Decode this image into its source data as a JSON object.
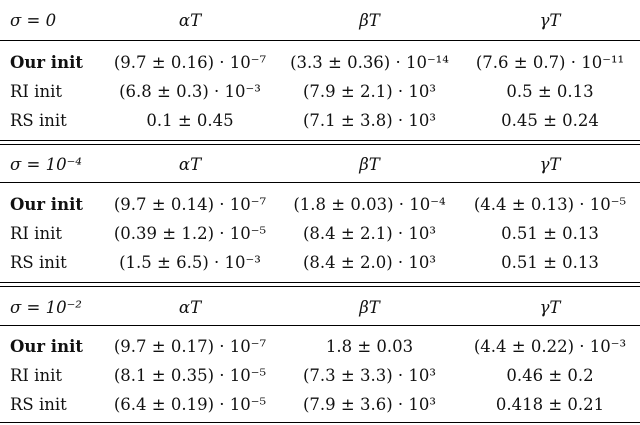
{
  "headers": [
    "α_T",
    "β_T",
    "γ_T"
  ],
  "headers_display": [
    "αT",
    "βT",
    "γT"
  ],
  "sections": [
    {
      "sigma_label": "σ = 0",
      "rows": [
        {
          "label": "Our init",
          "bold": true,
          "alpha": "(9.7 ± 0.16) · 10⁻⁷",
          "beta": "(3.3 ± 0.36) · 10⁻¹⁴",
          "gamma": "(7.6 ± 0.7) · 10⁻¹¹"
        },
        {
          "label": "RI init",
          "bold": false,
          "alpha": "(6.8 ± 0.3) · 10⁻³",
          "beta": "(7.9 ± 2.1) · 10³",
          "gamma": "0.5 ± 0.13"
        },
        {
          "label": "RS init",
          "bold": false,
          "alpha": "0.1 ± 0.45",
          "beta": "(7.1 ± 3.8) · 10³",
          "gamma": "0.45 ± 0.24"
        }
      ]
    },
    {
      "sigma_label": "σ = 10⁻⁴",
      "rows": [
        {
          "label": "Our init",
          "bold": true,
          "alpha": "(9.7 ± 0.14) · 10⁻⁷",
          "beta": "(1.8 ± 0.03) · 10⁻⁴",
          "gamma": "(4.4 ± 0.13) · 10⁻⁵"
        },
        {
          "label": "RI init",
          "bold": false,
          "alpha": "(0.39 ± 1.2) · 10⁻⁵",
          "beta": "(8.4 ± 2.1) · 10³",
          "gamma": "0.51 ± 0.13"
        },
        {
          "label": "RS init",
          "bold": false,
          "alpha": "(1.5 ± 6.5) · 10⁻³",
          "beta": "(8.4 ± 2.0) · 10³",
          "gamma": "0.51 ± 0.13"
        }
      ]
    },
    {
      "sigma_label": "σ = 10⁻²",
      "rows": [
        {
          "label": "Our init",
          "bold": true,
          "alpha": "(9.7 ± 0.17) · 10⁻⁷",
          "beta": "1.8 ± 0.03",
          "gamma": "(4.4 ± 0.22) · 10⁻³"
        },
        {
          "label": "RI init",
          "bold": false,
          "alpha": "(8.1 ± 0.35) · 10⁻⁵",
          "beta": "(7.3 ± 3.3) · 10³",
          "gamma": "0.46 ± 0.2"
        },
        {
          "label": "RS init",
          "bold": false,
          "alpha": "(6.4 ± 0.19) · 10⁻⁵",
          "beta": "(7.9 ± 3.6) · 10³",
          "gamma": "0.418 ± 0.21"
        }
      ]
    }
  ]
}
